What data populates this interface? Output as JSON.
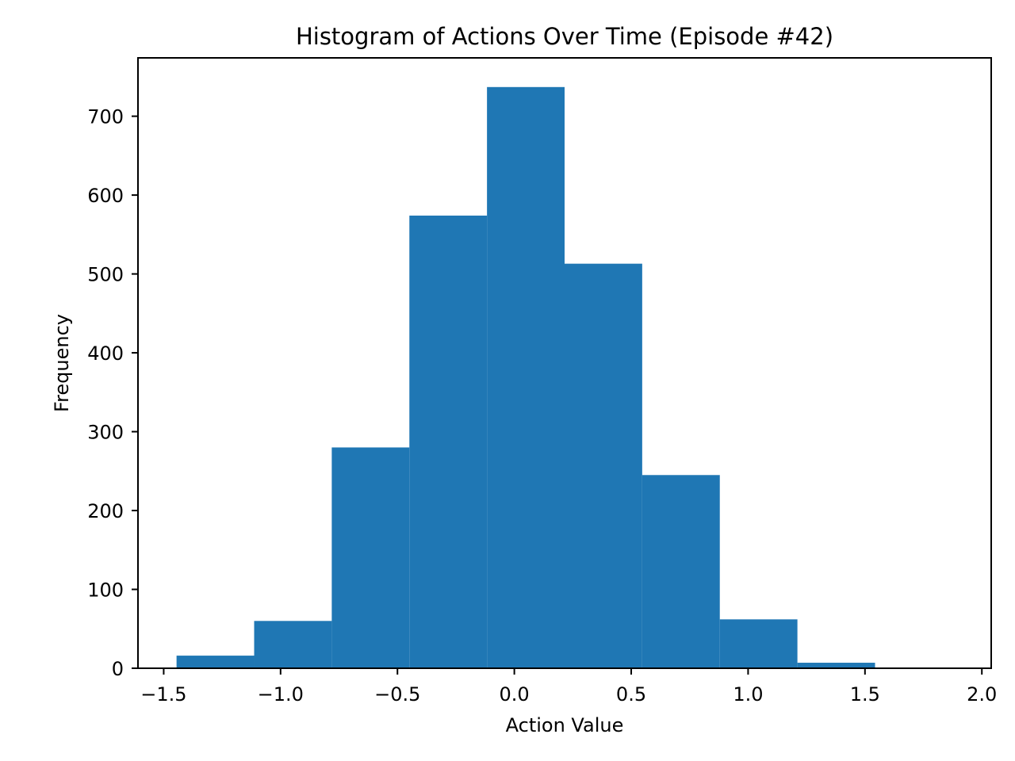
{
  "chart_data": {
    "type": "bar",
    "subtype": "histogram",
    "title": "Histogram of Actions Over Time (Episode #42)",
    "xlabel": "Action Value",
    "ylabel": "Frequency",
    "bins": [
      {
        "start": -1.445,
        "end": -1.113,
        "count": 16
      },
      {
        "start": -1.113,
        "end": -0.781,
        "count": 60
      },
      {
        "start": -0.781,
        "end": -0.449,
        "count": 280
      },
      {
        "start": -0.449,
        "end": -0.117,
        "count": 574
      },
      {
        "start": -0.117,
        "end": 0.215,
        "count": 737
      },
      {
        "start": 0.215,
        "end": 0.547,
        "count": 513
      },
      {
        "start": 0.547,
        "end": 0.879,
        "count": 245
      },
      {
        "start": 0.879,
        "end": 1.211,
        "count": 62
      },
      {
        "start": 1.211,
        "end": 1.543,
        "count": 7
      },
      {
        "start": 1.543,
        "end": 1.875,
        "count": 0
      }
    ],
    "xlim": [
      -1.61,
      2.04
    ],
    "ylim": [
      0,
      774
    ],
    "xticks": [
      -1.5,
      -1.0,
      -0.5,
      0.0,
      0.5,
      1.0,
      1.5,
      2.0
    ],
    "xtick_labels": [
      "−1.5",
      "−1.0",
      "−0.5",
      "0.0",
      "0.5",
      "1.0",
      "1.5",
      "2.0"
    ],
    "yticks": [
      0,
      100,
      200,
      300,
      400,
      500,
      600,
      700
    ],
    "ytick_labels": [
      "0",
      "100",
      "200",
      "300",
      "400",
      "500",
      "600",
      "700"
    ],
    "grid": false,
    "legend": "none",
    "bar_color": "#1f77b4"
  }
}
